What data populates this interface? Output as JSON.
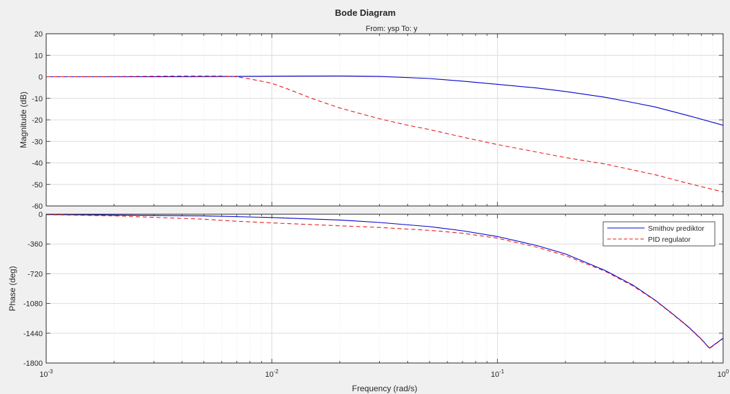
{
  "chart_data": {
    "type": "line",
    "title": "Bode Diagram",
    "subtitle": "From: ysp  To: y",
    "xlabel": "Frequency  (rad/s)",
    "xscale": "log",
    "xlim": [
      0.001,
      1
    ],
    "x_ticks": [
      {
        "base": "10",
        "exp": "-3",
        "value": 0.001
      },
      {
        "base": "10",
        "exp": "-2",
        "value": 0.01
      },
      {
        "base": "10",
        "exp": "-1",
        "value": 0.1
      },
      {
        "base": "10",
        "exp": "0",
        "value": 1
      }
    ],
    "grid": true,
    "legend_location": "top-right (phase axes)",
    "colors": {
      "smith": "#0000cc",
      "pid": "#e61a1a",
      "figure_bg": "#f0f0f0",
      "axes_bg": "#ffffff"
    },
    "panels": [
      {
        "id": "magnitude",
        "ylabel": "Magnitude (dB)",
        "ylim": [
          -60,
          20
        ],
        "yticks": [
          20,
          10,
          0,
          -10,
          -20,
          -30,
          -40,
          -50,
          -60
        ],
        "series": [
          {
            "name": "Smithov prediktor",
            "style": "solid",
            "color": "#0000cc",
            "x": [
              0.001,
              0.002,
              0.005,
              0.01,
              0.02,
              0.03,
              0.05,
              0.07,
              0.1,
              0.15,
              0.2,
              0.3,
              0.4,
              0.5,
              0.7,
              1.0
            ],
            "y": [
              0,
              0,
              0.1,
              0.3,
              0.4,
              0.2,
              -0.8,
              -2.0,
              -3.5,
              -5.2,
              -6.8,
              -9.5,
              -12,
              -14,
              -18,
              -22.5
            ]
          },
          {
            "name": "PID regulator",
            "style": "dashed",
            "color": "#e61a1a",
            "x": [
              0.001,
              0.002,
              0.004,
              0.006,
              0.007,
              0.008,
              0.01,
              0.012,
              0.015,
              0.02,
              0.03,
              0.04,
              0.05,
              0.07,
              0.1,
              0.15,
              0.2,
              0.3,
              0.5,
              0.7,
              1.0
            ],
            "y": [
              0,
              0.1,
              0.4,
              0.4,
              0,
              -1,
              -3,
              -6,
              -10,
              -14.5,
              -19.5,
              -22.5,
              -24.5,
              -28,
              -31.5,
              -35,
              -37.5,
              -40.5,
              -45.5,
              -49.5,
              -53.5
            ]
          }
        ]
      },
      {
        "id": "phase",
        "ylabel": "Phase (deg)",
        "ylim": [
          -1800,
          0
        ],
        "yticks": [
          0,
          -360,
          -720,
          -1080,
          -1440,
          -1800
        ],
        "series": [
          {
            "name": "Smithov prediktor",
            "style": "solid",
            "color": "#0000cc",
            "x": [
              0.001,
              0.002,
              0.005,
              0.01,
              0.02,
              0.03,
              0.05,
              0.07,
              0.1,
              0.15,
              0.2,
              0.3,
              0.4,
              0.5,
              0.6,
              0.7,
              0.8,
              0.87,
              1.0
            ],
            "y": [
              -5,
              -10,
              -20,
              -40,
              -70,
              -100,
              -150,
              -200,
              -270,
              -380,
              -480,
              -680,
              -860,
              -1040,
              -1210,
              -1360,
              -1510,
              -1620,
              -1500
            ]
          },
          {
            "name": "PID regulator",
            "style": "dashed",
            "color": "#e61a1a",
            "x": [
              0.001,
              0.002,
              0.005,
              0.007,
              0.01,
              0.02,
              0.03,
              0.05,
              0.07,
              0.1,
              0.15,
              0.2,
              0.3,
              0.4,
              0.5,
              0.6,
              0.7,
              0.8,
              0.87,
              1.0
            ],
            "y": [
              -5,
              -20,
              -60,
              -85,
              -105,
              -140,
              -160,
              -195,
              -230,
              -290,
              -400,
              -500,
              -690,
              -870,
              -1045,
              -1215,
              -1365,
              -1515,
              -1625,
              -1505
            ]
          }
        ]
      }
    ],
    "legend": [
      {
        "label": "Smithov prediktor",
        "color": "#0000cc",
        "style": "solid"
      },
      {
        "label": "PID regulator",
        "color": "#e61a1a",
        "style": "dashed"
      }
    ]
  }
}
